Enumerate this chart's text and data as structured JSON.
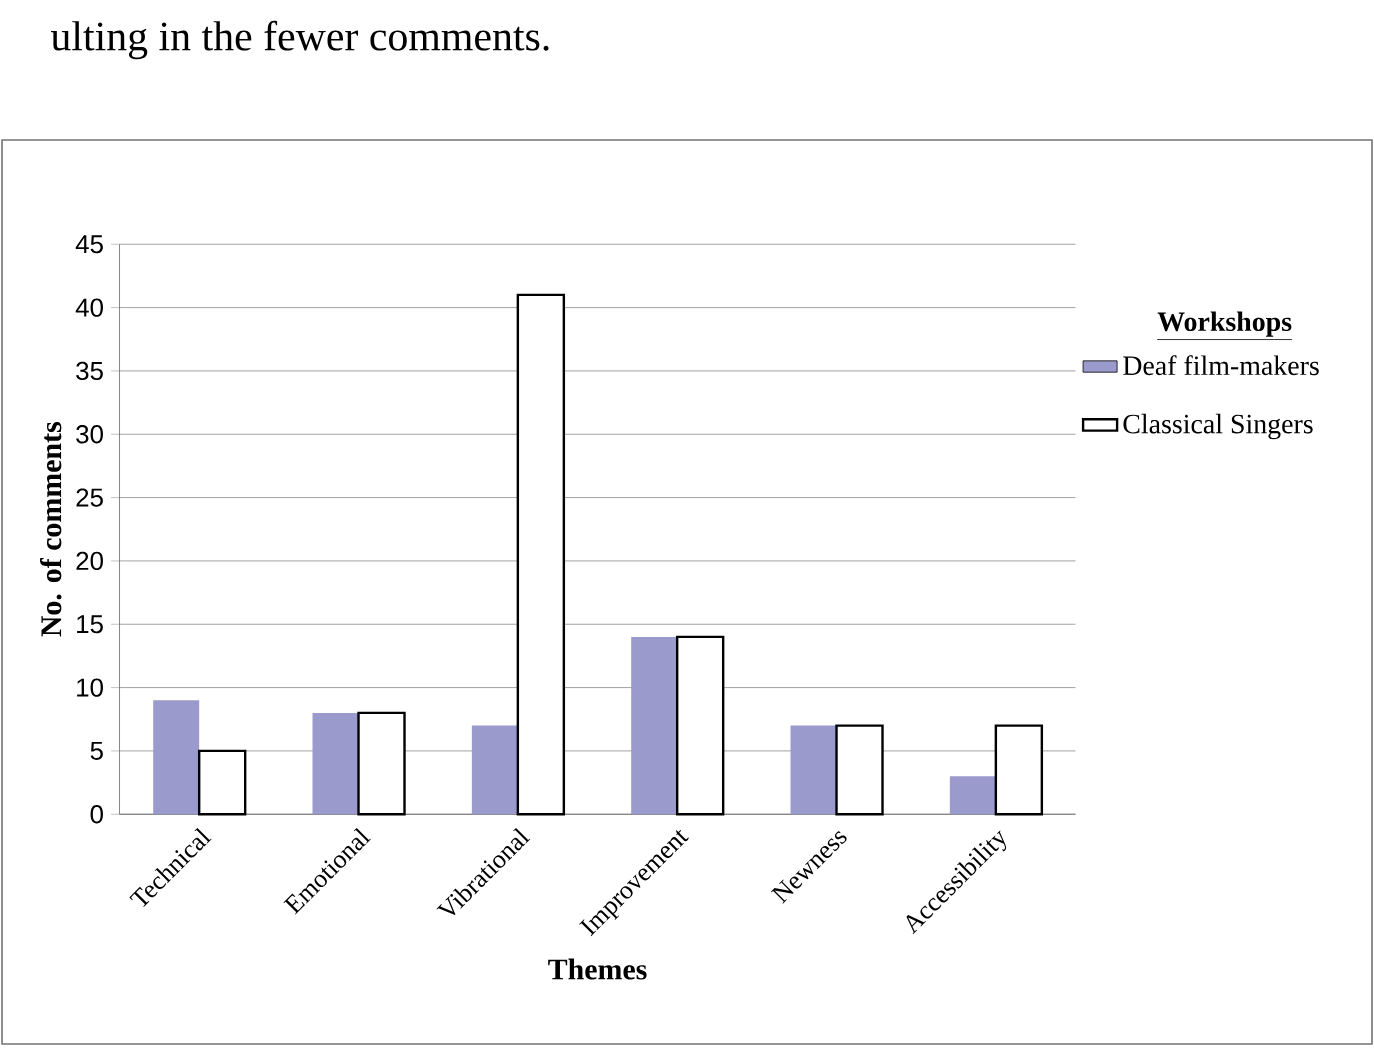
{
  "chart_data": {
    "type": "bar",
    "annotations": [
      "ulting in the fewer comments."
    ],
    "categories": [
      "Technical",
      "Emotional",
      "Vibrational",
      "Improvement",
      "Newness",
      "Accessibility"
    ],
    "series": [
      {
        "name": "Deaf film-makers",
        "color": "#9a9acc",
        "values": [
          9,
          8,
          7,
          14,
          7,
          3
        ]
      },
      {
        "name": "Classical Singers",
        "color": "#ffffff",
        "values": [
          5,
          8,
          41,
          14,
          7,
          7
        ]
      }
    ],
    "xlabel": "Themes",
    "ylabel": "No. of comments",
    "legend_title": "Workshops",
    "ylim": [
      0,
      45
    ],
    "yticks": [
      0,
      5,
      10,
      15,
      20,
      25,
      30,
      35,
      40,
      45
    ],
    "grid": "y",
    "legend": "right"
  }
}
